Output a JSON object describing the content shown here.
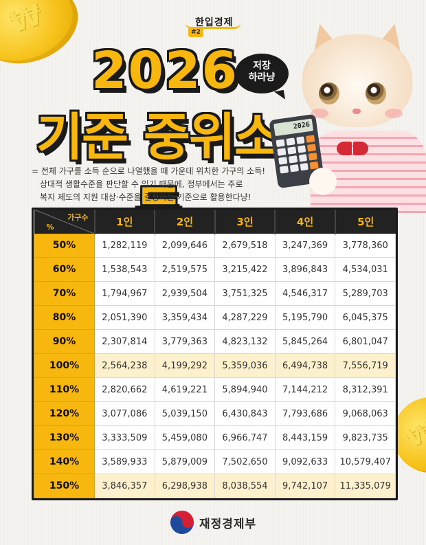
{
  "series": {
    "brand": "한입경제",
    "number": "#2"
  },
  "title": {
    "year": "2026",
    "main": "기준 중위소득"
  },
  "bubble": {
    "line1": "저장",
    "line2": "하라냥"
  },
  "calculator_display": "2026",
  "description": [
    "= 전체 가구를 소득 순으로 나열했을 때 가운데 위치한 가구의 소득!",
    "상대적 생활수준을 판단할 수 있기 때문에, 정부에서는 주로",
    "복지 제도의 지원 대상·수준을 결정하는 기준으로 활용한다냥!"
  ],
  "table": {
    "corner_top": "가구수",
    "corner_bottom": "%",
    "headers": [
      "1인",
      "2인",
      "3인",
      "4인",
      "5인"
    ],
    "rows": [
      {
        "pct": "50%",
        "values": [
          "1,282,119",
          "2,099,646",
          "2,679,518",
          "3,247,369",
          "3,778,360"
        ]
      },
      {
        "pct": "60%",
        "values": [
          "1,538,543",
          "2,519,575",
          "3,215,422",
          "3,896,843",
          "4,534,031"
        ]
      },
      {
        "pct": "70%",
        "values": [
          "1,794,967",
          "2,939,504",
          "3,751,325",
          "4,546,317",
          "5,289,703"
        ]
      },
      {
        "pct": "80%",
        "values": [
          "2,051,390",
          "3,359,434",
          "4,287,229",
          "5,195,790",
          "6,045,375"
        ]
      },
      {
        "pct": "90%",
        "values": [
          "2,307,814",
          "3,779,363",
          "4,823,132",
          "5,845,264",
          "6,801,047"
        ]
      },
      {
        "pct": "100%",
        "values": [
          "2,564,238",
          "4,199,292",
          "5,359,036",
          "6,494,738",
          "7,556,719"
        ]
      },
      {
        "pct": "110%",
        "values": [
          "2,820,662",
          "4,619,221",
          "5,894,940",
          "7,144,212",
          "8,312,391"
        ]
      },
      {
        "pct": "120%",
        "values": [
          "3,077,086",
          "5,039,150",
          "6,430,843",
          "7,793,686",
          "9,068,063"
        ]
      },
      {
        "pct": "130%",
        "values": [
          "3,333,509",
          "5,459,080",
          "6,966,747",
          "8,443,159",
          "9,823,735"
        ]
      },
      {
        "pct": "140%",
        "values": [
          "3,589,933",
          "5,879,009",
          "7,502,650",
          "9,092,633",
          "10,579,407"
        ]
      },
      {
        "pct": "150%",
        "values": [
          "3,846,357",
          "6,298,938",
          "8,038,554",
          "9,742,107",
          "11,335,079"
        ]
      }
    ]
  },
  "ministry": "재정경제부",
  "colors": {
    "accent": "#f7b70f",
    "dark": "#1a1a1a",
    "highlight_row": "#fcf1cc"
  }
}
